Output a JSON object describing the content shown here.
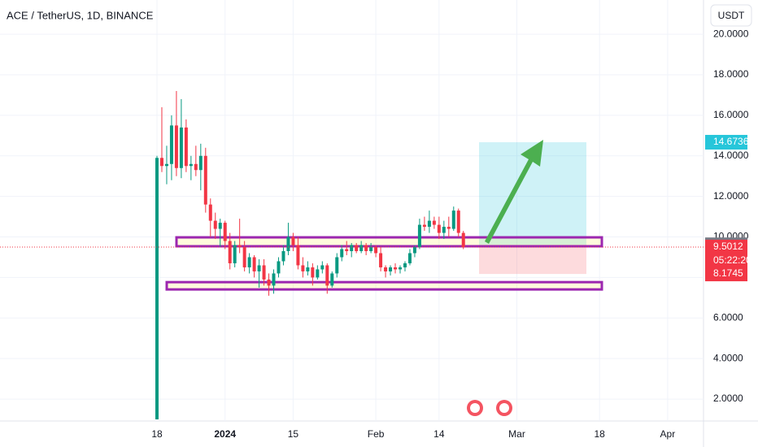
{
  "chart_data": {
    "type": "candlestick",
    "title": "ACE / TetherUS, 1D, BINANCE",
    "currency": "USDT",
    "up_color": "#089981",
    "down_color": "#f23645",
    "categories": [
      "18",
      null,
      null,
      null,
      null,
      null,
      null,
      null,
      null,
      null,
      null,
      null,
      null,
      null,
      "2024",
      null,
      null,
      null,
      null,
      null,
      null,
      null,
      null,
      null,
      null,
      null,
      null,
      null,
      "15",
      null,
      null,
      null,
      null,
      null,
      null,
      null,
      null,
      null,
      null,
      null,
      null,
      null,
      null,
      null,
      null,
      "Feb",
      null,
      null,
      null,
      null,
      null,
      null,
      null,
      null,
      null,
      null,
      null,
      null,
      "14",
      null,
      null,
      null,
      null,
      null,
      null,
      null,
      null,
      null,
      null,
      null,
      null,
      null,
      null,
      null,
      "Mar",
      null,
      null,
      null,
      null,
      null,
      null,
      null,
      null,
      null,
      null,
      null,
      null,
      null,
      null,
      null,
      null,
      "18",
      null,
      null,
      null,
      null,
      null,
      null,
      null,
      null,
      null,
      null,
      null,
      null,
      null,
      "Apr",
      null,
      null,
      null,
      null,
      null,
      null
    ],
    "open": [
      1.0,
      13.9,
      13.5,
      13.6,
      15.5,
      13.4,
      15.4,
      13.5,
      13.6,
      13.3,
      14.0,
      11.6,
      10.8,
      10.4,
      10.7,
      9.8,
      8.7,
      9.6,
      9.5,
      8.5,
      9.0,
      8.3,
      8.6,
      7.9,
      7.6,
      8.2,
      8.8,
      9.3,
      10.0,
      9.6,
      8.6,
      8.3,
      8.5,
      8.0,
      8.4,
      8.6,
      7.6,
      8.2,
      9.0,
      9.4,
      9.3,
      9.6,
      9.3,
      9.6,
      9.3,
      9.5,
      9.2,
      8.5,
      8.3,
      8.5,
      8.4,
      8.5,
      8.7,
      9.2,
      9.5,
      10.6,
      10.5,
      10.8,
      10.6,
      10.2,
      10.5,
      10.4,
      11.3,
      10.2,
      null,
      null,
      null,
      null,
      null,
      null,
      null,
      null,
      null,
      null,
      null,
      null,
      null,
      null,
      null,
      null,
      null,
      null,
      null,
      null,
      null,
      null,
      null,
      null,
      null,
      null,
      null,
      null,
      null,
      null,
      null,
      null,
      null,
      null,
      null,
      null,
      null,
      null,
      null,
      null,
      null,
      null,
      null,
      null,
      null,
      null,
      null,
      null
    ],
    "high": [
      14.0,
      16.4,
      14.5,
      16.0,
      17.2,
      16.8,
      15.8,
      14.0,
      14.5,
      14.6,
      14.4,
      11.9,
      11.2,
      10.9,
      10.8,
      10.2,
      9.8,
      10.9,
      9.8,
      9.2,
      9.1,
      8.9,
      8.9,
      8.2,
      8.4,
      9.0,
      9.6,
      10.7,
      10.2,
      10.0,
      9.0,
      8.8,
      8.7,
      8.6,
      8.8,
      8.7,
      8.3,
      9.2,
      9.6,
      9.8,
      9.7,
      9.7,
      9.8,
      9.7,
      9.7,
      9.6,
      9.5,
      8.6,
      8.6,
      8.7,
      8.6,
      8.8,
      9.4,
      9.6,
      10.9,
      11.0,
      11.3,
      11.0,
      11.0,
      10.8,
      11.0,
      11.5,
      11.4,
      10.3,
      null,
      null,
      null,
      null,
      null,
      null,
      null,
      null,
      null,
      null,
      null,
      null,
      null,
      null,
      null,
      null,
      null,
      null,
      null,
      null,
      null,
      null,
      null,
      null,
      null,
      null,
      null,
      null,
      null,
      null,
      null,
      null,
      null,
      null,
      null,
      null,
      null,
      null,
      null,
      null,
      null,
      null,
      null,
      null,
      null,
      null,
      null,
      null
    ],
    "low": [
      1.0,
      13.2,
      12.6,
      12.8,
      13.0,
      12.9,
      13.2,
      12.8,
      13.0,
      12.3,
      11.2,
      10.0,
      9.9,
      9.5,
      9.4,
      8.4,
      8.5,
      9.2,
      8.3,
      8.2,
      8.0,
      7.5,
      7.6,
      7.1,
      7.2,
      8.0,
      8.6,
      9.1,
      9.3,
      8.4,
      8.0,
      8.1,
      7.6,
      7.9,
      8.2,
      7.2,
      7.5,
      8.0,
      8.8,
      9.1,
      9.0,
      9.2,
      9.2,
      9.1,
      9.2,
      9.0,
      8.3,
      8.0,
      8.1,
      8.2,
      8.2,
      8.3,
      8.6,
      9.0,
      9.4,
      10.3,
      10.2,
      10.4,
      9.9,
      9.9,
      10.0,
      10.3,
      10.0,
      9.4,
      null,
      null,
      null,
      null,
      null,
      null,
      null,
      null,
      null,
      null,
      null,
      null,
      null,
      null,
      null,
      null,
      null,
      null,
      null,
      null,
      null,
      null,
      null,
      null,
      null,
      null,
      null,
      null,
      null,
      null,
      null,
      null,
      null,
      null,
      null,
      null,
      null,
      null,
      null,
      null,
      null,
      null,
      null,
      null,
      null,
      null,
      null,
      null
    ],
    "close": [
      13.9,
      13.5,
      13.6,
      15.5,
      13.4,
      15.4,
      13.5,
      13.6,
      13.3,
      14.0,
      11.6,
      10.8,
      10.4,
      10.7,
      9.8,
      8.7,
      9.6,
      9.5,
      8.5,
      9.0,
      8.3,
      8.6,
      7.9,
      7.6,
      8.2,
      8.8,
      9.3,
      10.0,
      9.6,
      8.6,
      8.3,
      8.5,
      8.0,
      8.4,
      8.6,
      7.6,
      8.2,
      9.0,
      9.4,
      9.3,
      9.6,
      9.3,
      9.6,
      9.3,
      9.5,
      9.2,
      8.5,
      8.3,
      8.5,
      8.4,
      8.5,
      8.7,
      9.2,
      9.5,
      10.6,
      10.5,
      10.8,
      10.6,
      10.2,
      10.5,
      10.4,
      11.3,
      10.2,
      9.5,
      null,
      null,
      null,
      null,
      null,
      null,
      null,
      null,
      null,
      null,
      null,
      null,
      null,
      null,
      null,
      null,
      null,
      null,
      null,
      null,
      null,
      null,
      null,
      null,
      null,
      null,
      null,
      null,
      null,
      null,
      null,
      null,
      null,
      null,
      null,
      null,
      null,
      null,
      null,
      null,
      null,
      null,
      null,
      null,
      null,
      null,
      null,
      null
    ],
    "ylim": [
      0.92,
      21.69
    ],
    "yticks": [
      {
        "value": 20,
        "label": "20.0000"
      },
      {
        "value": 18,
        "label": "18.0000"
      },
      {
        "value": 16,
        "label": "16.0000"
      },
      {
        "value": 14,
        "label": "14.0000"
      },
      {
        "value": 12,
        "label": "12.0000"
      },
      {
        "value": 10,
        "label": "10.0000"
      },
      {
        "value": 8,
        "label": "8.0000"
      },
      {
        "value": 6,
        "label": "6.0000"
      },
      {
        "value": 4,
        "label": "4.0000"
      },
      {
        "value": 2,
        "label": "2.0000"
      }
    ],
    "zones": [
      {
        "top": 9.98,
        "bottom": 9.54
      },
      {
        "top": 7.77,
        "bottom": 7.41
      }
    ],
    "position": {
      "target": 14.6736,
      "entry": 9.6136,
      "stop": 8.1745
    },
    "last_price": 9.5012,
    "countdown": "05:22:20",
    "grid": true
  }
}
